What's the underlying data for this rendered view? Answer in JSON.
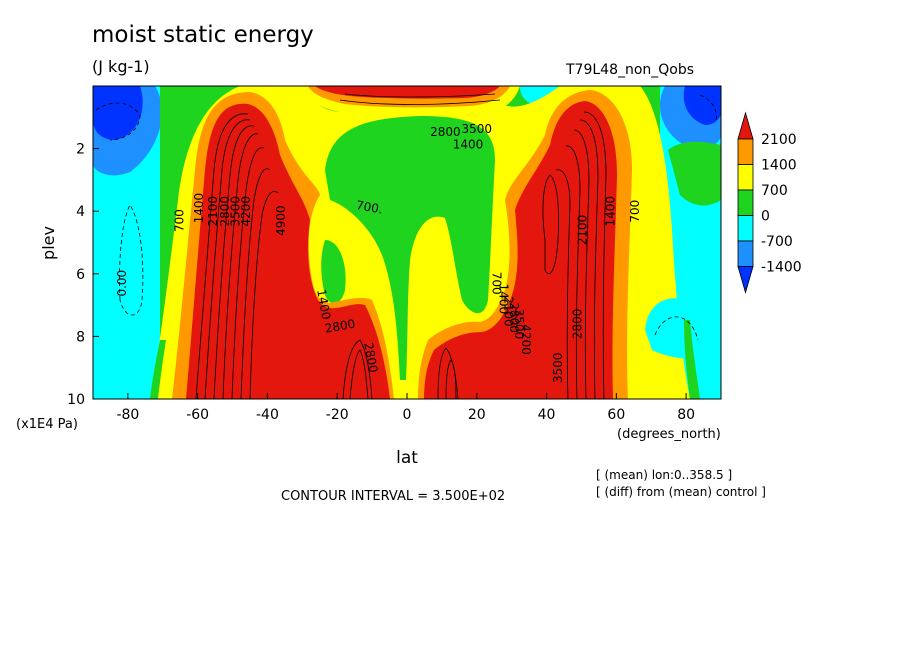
{
  "header": {
    "title": "moist static energy",
    "units": "(J kg-1)",
    "run_name": "T79L48_non_Qobs"
  },
  "footer": {
    "contour_interval": "CONTOUR INTERVAL = 3.500E+02",
    "note_mean": "[ (mean) lon:0..358.5 ]",
    "note_diff": "[ (diff) from (mean) control ]"
  },
  "chart_data": {
    "type": "heatmap",
    "title": "moist static energy",
    "subtitle": "(J kg-1)",
    "xlabel": "lat",
    "ylabel": "plev",
    "x_units": "(degrees_north)",
    "y_units": "(x1E4 Pa)",
    "xlim": [
      -90,
      90
    ],
    "ylim": [
      10,
      0
    ],
    "x_ticks": [
      -80,
      -60,
      -40,
      -20,
      0,
      20,
      40,
      60,
      80
    ],
    "x_tick_labels": [
      "-80",
      "-60",
      "-40",
      "-20",
      "0",
      "20",
      "40",
      "60",
      "80"
    ],
    "y_ticks": [
      2,
      4,
      6,
      8,
      10
    ],
    "y_tick_labels": [
      "2",
      "4",
      "6",
      "8",
      "10"
    ],
    "colorbar": {
      "labels": [
        "2100",
        "1400",
        "700",
        "0",
        "-700",
        "-1400"
      ],
      "colors": [
        "#e3170d",
        "#ff9900",
        "#ffff00",
        "#1ed41e",
        "#00ffff",
        "#1e90ff",
        "#0033ff"
      ]
    },
    "contour_labels": [
      {
        "text": "0.00",
        "lat": -80.5,
        "p": 6.3,
        "angle": -90
      },
      {
        "text": "700",
        "lat": -64,
        "p": 4.3,
        "angle": -90
      },
      {
        "text": "1400",
        "lat": -58.5,
        "p": 3.9,
        "angle": -90
      },
      {
        "text": "2100",
        "lat": -54.5,
        "p": 4.0,
        "angle": -90
      },
      {
        "text": "2800",
        "lat": -51,
        "p": 4.0,
        "angle": -90
      },
      {
        "text": "3500",
        "lat": -48,
        "p": 4.0,
        "angle": -90
      },
      {
        "text": "4200",
        "lat": -45,
        "p": 4.0,
        "angle": -90
      },
      {
        "text": "4900",
        "lat": -35,
        "p": 4.3,
        "angle": -90
      },
      {
        "text": "700.",
        "lat": -11,
        "p": 4.0,
        "angle": 10
      },
      {
        "text": "1400",
        "lat": -25,
        "p": 7.0,
        "angle": 80
      },
      {
        "text": "2800",
        "lat": -19,
        "p": 7.8,
        "angle": -10
      },
      {
        "text": "2800",
        "lat": -11.5,
        "p": 8.7,
        "angle": 80
      },
      {
        "text": "2800",
        "lat": 11,
        "p": 1.6,
        "angle": 0
      },
      {
        "text": "3500",
        "lat": 20,
        "p": 1.5,
        "angle": 0
      },
      {
        "text": "1400",
        "lat": 17.5,
        "p": 2.0,
        "angle": 0
      },
      {
        "text": "700",
        "lat": 24.5,
        "p": 6.3,
        "angle": 90
      },
      {
        "text": "1400",
        "lat": 26.5,
        "p": 6.8,
        "angle": 90
      },
      {
        "text": "2100",
        "lat": 28,
        "p": 7.2,
        "angle": 90
      },
      {
        "text": "2800",
        "lat": 29.5,
        "p": 7.4,
        "angle": 90
      },
      {
        "text": "3500",
        "lat": 31,
        "p": 7.6,
        "angle": 90
      },
      {
        "text": "4200",
        "lat": 33,
        "p": 8.1,
        "angle": 90
      },
      {
        "text": "2100",
        "lat": 51.5,
        "p": 4.6,
        "angle": -90
      },
      {
        "text": "1400",
        "lat": 59.5,
        "p": 4.0,
        "angle": -90
      },
      {
        "text": "700",
        "lat": 66.5,
        "p": 4.0,
        "angle": -90
      },
      {
        "text": "2800",
        "lat": 50,
        "p": 7.6,
        "angle": -90
      },
      {
        "text": "3500",
        "lat": 44.5,
        "p": 9.0,
        "angle": -90
      }
    ]
  }
}
